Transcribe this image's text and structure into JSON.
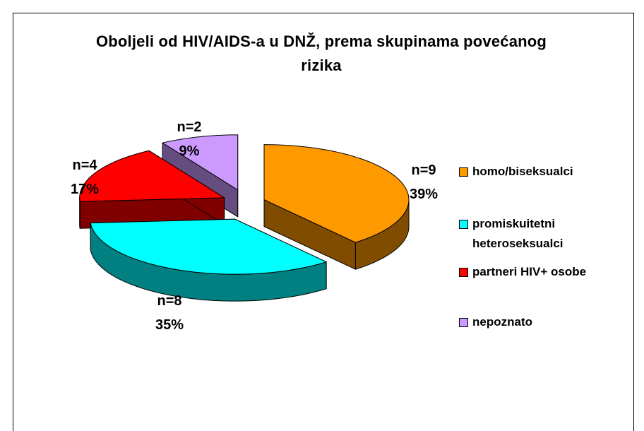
{
  "chart_data": {
    "type": "pie3d",
    "title": "Oboljeli od HIV/AIDS-a u DNŽ, prema skupinama povećanog rizika",
    "categories": [
      "homo/biseksualci",
      "promiskuitetni heteroseksualci",
      "partneri HIV+ osobe",
      "nepoznato"
    ],
    "values": [
      9,
      8,
      4,
      2
    ],
    "value_labels": [
      "n=9",
      "n=8",
      "n=4",
      "n=2"
    ],
    "percentages": [
      39,
      35,
      17,
      9
    ],
    "percentage_labels": [
      "39%",
      "35%",
      "17%",
      "9%"
    ],
    "colors": [
      "#FF9900",
      "#00FFFF",
      "#FF0000",
      "#CC99FF"
    ],
    "legend": "right"
  }
}
